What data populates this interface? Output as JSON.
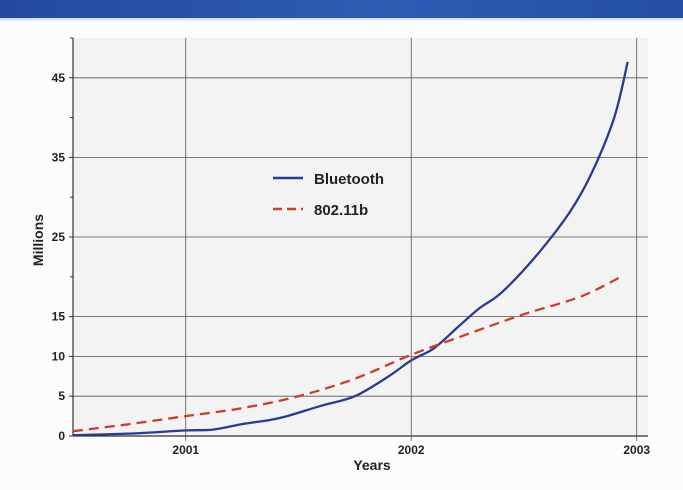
{
  "chart_data": {
    "type": "line",
    "xlabel": "Years",
    "ylabel": "Millions",
    "x_ticks": [
      "2001",
      "2002",
      "2003"
    ],
    "y_ticks": [
      0,
      5,
      10,
      15,
      25,
      35,
      45
    ],
    "xlim": [
      2000.5,
      2003.05
    ],
    "ylim": [
      0,
      50
    ],
    "grid": true,
    "legend_position": "center-left",
    "series": [
      {
        "name": "Bluetooth",
        "color": "#2a3a8c",
        "dash": "solid",
        "points": [
          [
            2000.5,
            0.1
          ],
          [
            2000.75,
            0.3
          ],
          [
            2001.0,
            0.7
          ],
          [
            2001.12,
            0.8
          ],
          [
            2001.25,
            1.5
          ],
          [
            2001.37,
            2.0
          ],
          [
            2001.45,
            2.5
          ],
          [
            2001.6,
            3.8
          ],
          [
            2001.75,
            5.0
          ],
          [
            2001.9,
            7.5
          ],
          [
            2002.0,
            9.5
          ],
          [
            2002.1,
            11.0
          ],
          [
            2002.2,
            13.5
          ],
          [
            2002.3,
            16.0
          ],
          [
            2002.4,
            18.0
          ],
          [
            2002.55,
            22.5
          ],
          [
            2002.7,
            28.0
          ],
          [
            2002.8,
            33.0
          ],
          [
            2002.9,
            40.0
          ],
          [
            2002.96,
            47.0
          ]
        ]
      },
      {
        "name": "802.11b",
        "color": "#c8402a",
        "dash": "dashed",
        "points": [
          [
            2000.5,
            0.6
          ],
          [
            2000.75,
            1.5
          ],
          [
            2001.0,
            2.5
          ],
          [
            2001.25,
            3.5
          ],
          [
            2001.5,
            5.0
          ],
          [
            2001.75,
            7.2
          ],
          [
            2002.0,
            10.2
          ],
          [
            2002.25,
            12.8
          ],
          [
            2002.5,
            15.3
          ],
          [
            2002.75,
            17.5
          ],
          [
            2002.93,
            20.0
          ]
        ]
      }
    ]
  }
}
